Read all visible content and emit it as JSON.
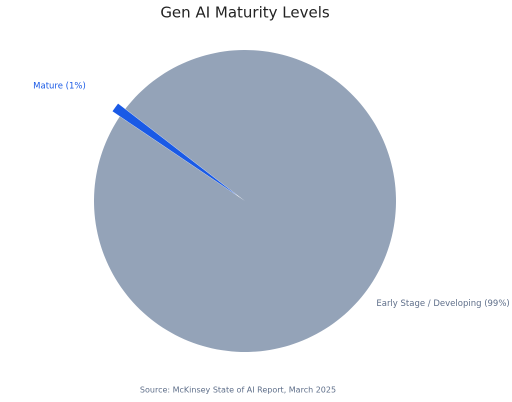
{
  "chart_data": {
    "type": "pie",
    "title": "Gen AI Maturity Levels",
    "categories": [
      "Mature (1%)",
      "Early Stage / Developing (99%)"
    ],
    "values": [
      1,
      99
    ],
    "colors": [
      "#1a5ae6",
      "#94a3b8"
    ],
    "source": "Source: McKinsey State of AI Report, March 2025"
  }
}
